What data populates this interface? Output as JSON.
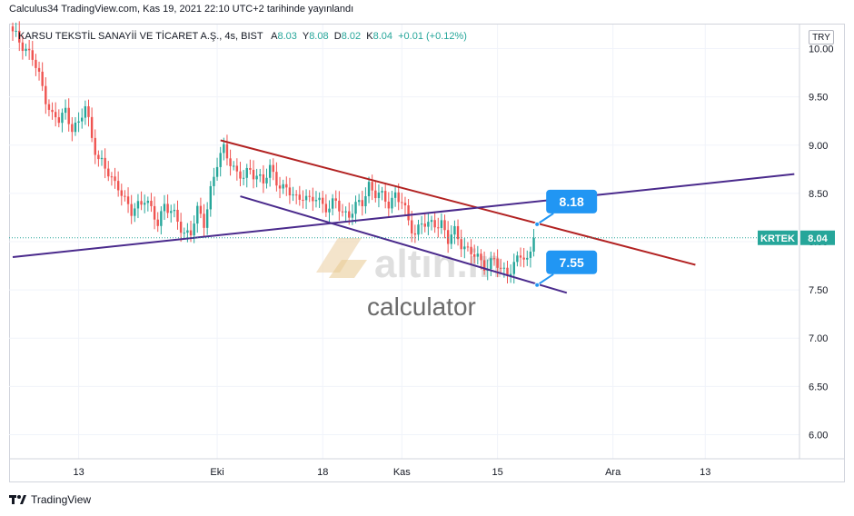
{
  "header": {
    "published_line": "Calculus34 TradingView.com, Kas 19, 2021 22:10 UTC+2 tarihinde yayınlandı"
  },
  "legend": {
    "title": "KARSU TEKSTİL SANAYİİ VE TİCARET A.Ş., 4s, BIST",
    "open_label": "A",
    "open": "8.03",
    "high_label": "Y",
    "high": "8.08",
    "low_label": "D",
    "low": "8.02",
    "close_label": "K",
    "close": "8.04",
    "change": "+0.01 (+0.12%)"
  },
  "currency_button": "TRY",
  "price_tag": {
    "symbol": "KRTEK",
    "value": "8.04"
  },
  "footer": {
    "brand": "TradingView"
  },
  "watermark": {
    "text": "altın.in",
    "sub": "calculator"
  },
  "colors": {
    "up": "#26a69a",
    "down": "#ef5350",
    "red_line": "#b22222",
    "purple_line": "#4a2a8c",
    "callout": "#2196f3"
  },
  "chart_data": {
    "type": "candlestick",
    "title": "KARSU TEKSTİL SANAYİİ VE TİCARET A.Ş., 4s, BIST",
    "ylim": [
      5.75,
      10.25
    ],
    "y_ticks": [
      "10.00",
      "9.50",
      "9.00",
      "8.50",
      "8.00",
      "7.50",
      "7.00",
      "6.50",
      "6.00"
    ],
    "x_ticks": [
      "13",
      "Eki",
      "18",
      "Kas",
      "15",
      "Ara",
      "13"
    ],
    "x_tick_index": [
      20,
      62,
      94,
      118,
      147,
      182,
      210
    ],
    "close_path": [
      [
        0,
        10.15
      ],
      [
        3,
        10.05
      ],
      [
        6,
        9.9
      ],
      [
        9,
        9.6
      ],
      [
        12,
        9.3
      ],
      [
        14,
        9.25
      ],
      [
        16,
        9.35
      ],
      [
        18,
        9.2
      ],
      [
        20,
        9.2
      ],
      [
        22,
        9.4
      ],
      [
        24,
        9.1
      ],
      [
        26,
        8.85
      ],
      [
        28,
        8.75
      ],
      [
        30,
        8.65
      ],
      [
        32,
        8.6
      ],
      [
        34,
        8.4
      ],
      [
        36,
        8.3
      ],
      [
        38,
        8.4
      ],
      [
        40,
        8.45
      ],
      [
        42,
        8.3
      ],
      [
        44,
        8.2
      ],
      [
        46,
        8.4
      ],
      [
        48,
        8.3
      ],
      [
        50,
        8.2
      ],
      [
        52,
        8.1
      ],
      [
        54,
        8.1
      ],
      [
        56,
        8.3
      ],
      [
        58,
        8.2
      ],
      [
        60,
        8.55
      ],
      [
        62,
        8.8
      ],
      [
        64,
        8.95
      ],
      [
        66,
        8.85
      ],
      [
        68,
        8.7
      ],
      [
        70,
        8.65
      ],
      [
        72,
        8.75
      ],
      [
        74,
        8.7
      ],
      [
        76,
        8.6
      ],
      [
        78,
        8.75
      ],
      [
        80,
        8.65
      ],
      [
        82,
        8.55
      ],
      [
        84,
        8.5
      ],
      [
        86,
        8.45
      ],
      [
        88,
        8.5
      ],
      [
        90,
        8.4
      ],
      [
        92,
        8.45
      ],
      [
        94,
        8.4
      ],
      [
        96,
        8.35
      ],
      [
        98,
        8.4
      ],
      [
        100,
        8.3
      ],
      [
        102,
        8.3
      ],
      [
        104,
        8.35
      ],
      [
        106,
        8.4
      ],
      [
        108,
        8.6
      ],
      [
        110,
        8.5
      ],
      [
        112,
        8.45
      ],
      [
        114,
        8.4
      ],
      [
        116,
        8.5
      ],
      [
        118,
        8.4
      ],
      [
        120,
        8.2
      ],
      [
        122,
        8.1
      ],
      [
        124,
        8.2
      ],
      [
        126,
        8.15
      ],
      [
        128,
        8.2
      ],
      [
        130,
        8.2
      ],
      [
        132,
        8.0
      ],
      [
        134,
        8.1
      ],
      [
        136,
        8.0
      ],
      [
        138,
        7.9
      ],
      [
        140,
        7.85
      ],
      [
        142,
        7.8
      ],
      [
        144,
        7.75
      ],
      [
        146,
        7.8
      ],
      [
        148,
        7.7
      ],
      [
        150,
        7.7
      ],
      [
        152,
        7.75
      ],
      [
        154,
        7.85
      ],
      [
        156,
        7.8
      ],
      [
        158,
        8.04
      ]
    ],
    "trendlines": [
      {
        "name": "upper-channel-red",
        "color": "#b22222",
        "from": [
          63,
          9.05
        ],
        "to": [
          207,
          7.76
        ]
      },
      {
        "name": "lower-channel-purple",
        "color": "#4a2a8c",
        "from": [
          69,
          8.47
        ],
        "to": [
          168,
          7.47
        ]
      },
      {
        "name": "long-support-purple",
        "color": "#4a2a8c",
        "from": [
          0,
          7.84
        ],
        "to": [
          237,
          8.7
        ]
      }
    ],
    "callouts": [
      {
        "label": "8.18",
        "x": 159,
        "y": 8.18
      },
      {
        "label": "7.55",
        "x": 159,
        "y": 7.55
      }
    ],
    "last_price": 8.04
  }
}
